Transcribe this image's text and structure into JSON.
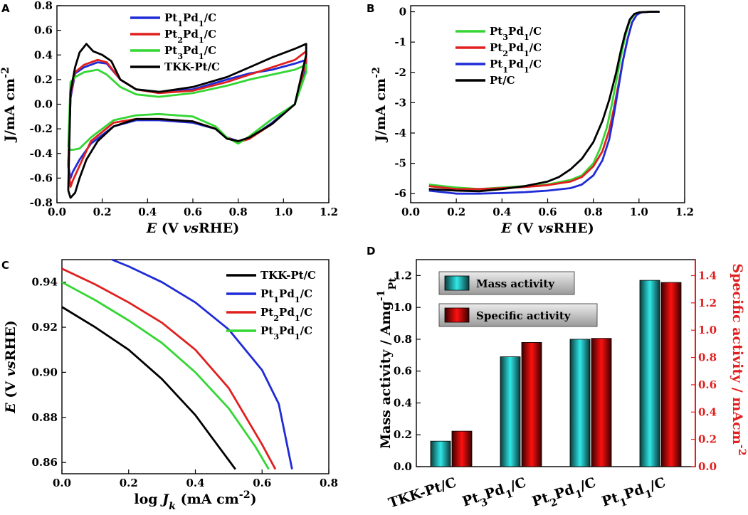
{
  "chart_data": [
    {
      "panel": "A",
      "type": "line",
      "xlabel": "E (V vsRHE)",
      "ylabel": "J/mA cm-2",
      "xlim": [
        0.0,
        1.2
      ],
      "ylim": [
        -0.8,
        0.8
      ],
      "xticks": [
        0.0,
        0.2,
        0.4,
        0.6,
        0.8,
        1.0,
        1.2
      ],
      "yticks": [
        -0.8,
        -0.6,
        -0.4,
        -0.2,
        0.0,
        0.2,
        0.4,
        0.6,
        0.8
      ],
      "legend_position": "top-center",
      "series": [
        {
          "name": "Pt1Pd1/C",
          "color": "#1f2bd6",
          "x": [
            0.05,
            0.06,
            0.08,
            0.12,
            0.18,
            0.22,
            0.28,
            0.35,
            0.45,
            0.6,
            0.75,
            0.85,
            0.95,
            1.05,
            1.1,
            1.1,
            1.05,
            0.95,
            0.85,
            0.8,
            0.75,
            0.7,
            0.6,
            0.45,
            0.35,
            0.25,
            0.15,
            0.1,
            0.07,
            0.06,
            0.05
          ],
          "y": [
            -0.5,
            0.05,
            0.25,
            0.3,
            0.34,
            0.33,
            0.2,
            0.12,
            0.1,
            0.12,
            0.2,
            0.25,
            0.28,
            0.33,
            0.36,
            0.3,
            0.0,
            -0.15,
            -0.28,
            -0.3,
            -0.27,
            -0.2,
            -0.15,
            -0.13,
            -0.13,
            -0.18,
            -0.32,
            -0.45,
            -0.55,
            -0.6,
            -0.5
          ]
        },
        {
          "name": "Pt2Pd1/C",
          "color": "#e0201f",
          "x": [
            0.05,
            0.06,
            0.08,
            0.12,
            0.18,
            0.22,
            0.28,
            0.35,
            0.45,
            0.6,
            0.75,
            0.85,
            0.95,
            1.05,
            1.1,
            1.1,
            1.05,
            0.95,
            0.85,
            0.8,
            0.75,
            0.7,
            0.6,
            0.45,
            0.35,
            0.25,
            0.15,
            0.1,
            0.07,
            0.06,
            0.05
          ],
          "y": [
            -0.5,
            0.08,
            0.26,
            0.32,
            0.36,
            0.34,
            0.2,
            0.12,
            0.09,
            0.11,
            0.18,
            0.24,
            0.3,
            0.36,
            0.43,
            0.35,
            0.0,
            -0.16,
            -0.28,
            -0.31,
            -0.27,
            -0.2,
            -0.14,
            -0.12,
            -0.12,
            -0.15,
            -0.3,
            -0.5,
            -0.62,
            -0.67,
            -0.5
          ]
        },
        {
          "name": "Pt3Pd1/C",
          "color": "#33d633",
          "x": [
            0.05,
            0.06,
            0.08,
            0.12,
            0.18,
            0.22,
            0.28,
            0.35,
            0.45,
            0.6,
            0.75,
            0.85,
            0.95,
            1.05,
            1.1,
            1.1,
            1.05,
            0.95,
            0.85,
            0.8,
            0.75,
            0.7,
            0.6,
            0.45,
            0.35,
            0.25,
            0.15,
            0.1,
            0.07,
            0.06,
            0.05
          ],
          "y": [
            -0.35,
            0.18,
            0.22,
            0.26,
            0.28,
            0.24,
            0.14,
            0.08,
            0.06,
            0.09,
            0.15,
            0.2,
            0.24,
            0.28,
            0.32,
            0.26,
            0.0,
            -0.12,
            -0.26,
            -0.32,
            -0.27,
            -0.18,
            -0.1,
            -0.08,
            -0.09,
            -0.13,
            -0.27,
            -0.36,
            -0.37,
            -0.37,
            -0.35
          ]
        },
        {
          "name": "TKK-Pt/C",
          "color": "#000000",
          "x": [
            0.05,
            0.06,
            0.08,
            0.1,
            0.13,
            0.16,
            0.2,
            0.24,
            0.28,
            0.35,
            0.45,
            0.6,
            0.75,
            0.85,
            0.95,
            1.05,
            1.1,
            1.1,
            1.05,
            0.95,
            0.85,
            0.8,
            0.75,
            0.7,
            0.6,
            0.45,
            0.35,
            0.25,
            0.18,
            0.13,
            0.1,
            0.08,
            0.06,
            0.05
          ],
          "y": [
            -0.7,
            0.1,
            0.3,
            0.42,
            0.49,
            0.43,
            0.4,
            0.35,
            0.2,
            0.12,
            0.1,
            0.14,
            0.22,
            0.3,
            0.38,
            0.45,
            0.49,
            0.4,
            0.0,
            -0.16,
            -0.27,
            -0.3,
            -0.28,
            -0.2,
            -0.14,
            -0.12,
            -0.12,
            -0.18,
            -0.3,
            -0.45,
            -0.6,
            -0.72,
            -0.76,
            -0.7
          ]
        }
      ]
    },
    {
      "panel": "B",
      "type": "line",
      "xlabel": "E (V vsRHE)",
      "ylabel": "J/mA cm-2",
      "xlim": [
        0.0,
        1.2
      ],
      "ylim": [
        -6.3,
        0.2
      ],
      "xticks": [
        0.0,
        0.2,
        0.4,
        0.6,
        0.8,
        1.0,
        1.2
      ],
      "yticks": [
        0,
        -1,
        -2,
        -3,
        -4,
        -5,
        -6
      ],
      "legend_position": "top-left",
      "series": [
        {
          "name": "Pt3Pd1/C",
          "color": "#33d633",
          "x": [
            0.08,
            0.2,
            0.3,
            0.4,
            0.5,
            0.6,
            0.7,
            0.75,
            0.8,
            0.83,
            0.86,
            0.88,
            0.9,
            0.92,
            0.94,
            0.96,
            0.98,
            1.0,
            1.05,
            1.09
          ],
          "y": [
            -5.7,
            -5.8,
            -5.85,
            -5.8,
            -5.75,
            -5.7,
            -5.55,
            -5.4,
            -5.0,
            -4.5,
            -3.8,
            -3.1,
            -2.3,
            -1.5,
            -0.8,
            -0.3,
            -0.08,
            -0.02,
            0.0,
            0.0
          ]
        },
        {
          "name": "Pt2Pd1/C",
          "color": "#e0201f",
          "x": [
            0.08,
            0.2,
            0.3,
            0.4,
            0.5,
            0.6,
            0.7,
            0.75,
            0.8,
            0.84,
            0.87,
            0.89,
            0.91,
            0.93,
            0.95,
            0.97,
            0.99,
            1.01,
            1.05,
            1.09
          ],
          "y": [
            -5.75,
            -5.85,
            -5.85,
            -5.82,
            -5.78,
            -5.72,
            -5.6,
            -5.45,
            -5.1,
            -4.6,
            -3.9,
            -3.2,
            -2.4,
            -1.6,
            -0.9,
            -0.35,
            -0.1,
            -0.02,
            0.0,
            0.0
          ]
        },
        {
          "name": "Pt1Pd1/C",
          "color": "#1f2bd6",
          "x": [
            0.08,
            0.2,
            0.3,
            0.4,
            0.5,
            0.6,
            0.7,
            0.75,
            0.8,
            0.84,
            0.87,
            0.89,
            0.91,
            0.93,
            0.95,
            0.97,
            0.99,
            1.01,
            1.05,
            1.09
          ],
          "y": [
            -5.9,
            -6.0,
            -6.0,
            -5.98,
            -5.95,
            -5.9,
            -5.82,
            -5.7,
            -5.4,
            -4.9,
            -4.2,
            -3.4,
            -2.5,
            -1.6,
            -0.9,
            -0.35,
            -0.1,
            -0.02,
            0.0,
            0.0
          ]
        },
        {
          "name": "Pt/C",
          "color": "#000000",
          "x": [
            0.08,
            0.2,
            0.3,
            0.4,
            0.5,
            0.6,
            0.65,
            0.7,
            0.75,
            0.8,
            0.84,
            0.87,
            0.9,
            0.92,
            0.94,
            0.96,
            0.98,
            1.0,
            1.05,
            1.09
          ],
          "y": [
            -5.85,
            -5.9,
            -5.92,
            -5.85,
            -5.75,
            -5.6,
            -5.45,
            -5.2,
            -4.85,
            -4.3,
            -3.6,
            -2.9,
            -2.0,
            -1.3,
            -0.7,
            -0.25,
            -0.07,
            -0.02,
            0.0,
            0.0
          ]
        }
      ]
    },
    {
      "panel": "C",
      "type": "line",
      "xlabel": "log Jk (mA cm-2)",
      "ylabel": "E (V vsRHE)",
      "xlim": [
        0.0,
        0.8
      ],
      "ylim": [
        0.855,
        0.95
      ],
      "xticks": [
        0.0,
        0.2,
        0.4,
        0.6,
        0.8
      ],
      "yticks": [
        0.86,
        0.88,
        0.9,
        0.92,
        0.94
      ],
      "legend_position": "top-right",
      "series": [
        {
          "name": "TKK-Pt/C",
          "color": "#000000",
          "x": [
            0.0,
            0.1,
            0.2,
            0.3,
            0.4,
            0.45,
            0.5,
            0.52
          ],
          "y": [
            0.929,
            0.92,
            0.91,
            0.897,
            0.881,
            0.871,
            0.861,
            0.857
          ]
        },
        {
          "name": "Pt1Pd1/C",
          "color": "#1f2bd6",
          "x": [
            0.15,
            0.2,
            0.3,
            0.4,
            0.5,
            0.6,
            0.65,
            0.69
          ],
          "y": [
            0.95,
            0.947,
            0.94,
            0.931,
            0.919,
            0.901,
            0.886,
            0.857
          ]
        },
        {
          "name": "Pt2Pd1/C",
          "color": "#e0201f",
          "x": [
            0.0,
            0.1,
            0.2,
            0.3,
            0.4,
            0.5,
            0.6,
            0.64
          ],
          "y": [
            0.946,
            0.939,
            0.931,
            0.922,
            0.91,
            0.893,
            0.868,
            0.857
          ]
        },
        {
          "name": "Pt3Pd1/C",
          "color": "#33d633",
          "x": [
            0.0,
            0.1,
            0.2,
            0.3,
            0.4,
            0.5,
            0.58,
            0.62
          ],
          "y": [
            0.94,
            0.932,
            0.923,
            0.913,
            0.9,
            0.884,
            0.867,
            0.857
          ]
        }
      ]
    },
    {
      "panel": "D",
      "type": "bar",
      "categories": [
        "TKK-Pt/C",
        "Pt3Pd1/C",
        "Pt2Pd1/C",
        "Pt1Pd1/C"
      ],
      "ylabel": "Mass activity / Amg-1Pt",
      "ylabel_right": "Specific activity / mAcm-2",
      "ylim": [
        0.0,
        1.3
      ],
      "ylim_right": [
        0.0,
        1.517
      ],
      "yticks": [
        0.0,
        0.2,
        0.4,
        0.6,
        0.8,
        1.0,
        1.2
      ],
      "yticks_right": [
        0.0,
        0.2,
        0.4,
        0.6,
        0.8,
        1.0,
        1.2,
        1.4
      ],
      "right_axis_color": "#e0201f",
      "legend_position": "top-left",
      "series": [
        {
          "name": "Mass activity",
          "color": "#2ad4d4",
          "axis": "left",
          "values": [
            0.16,
            0.69,
            0.8,
            1.17
          ]
        },
        {
          "name": "Specific activity",
          "color": "#ff0000",
          "axis": "right",
          "values": [
            0.26,
            0.91,
            0.94,
            1.35
          ]
        }
      ]
    }
  ]
}
